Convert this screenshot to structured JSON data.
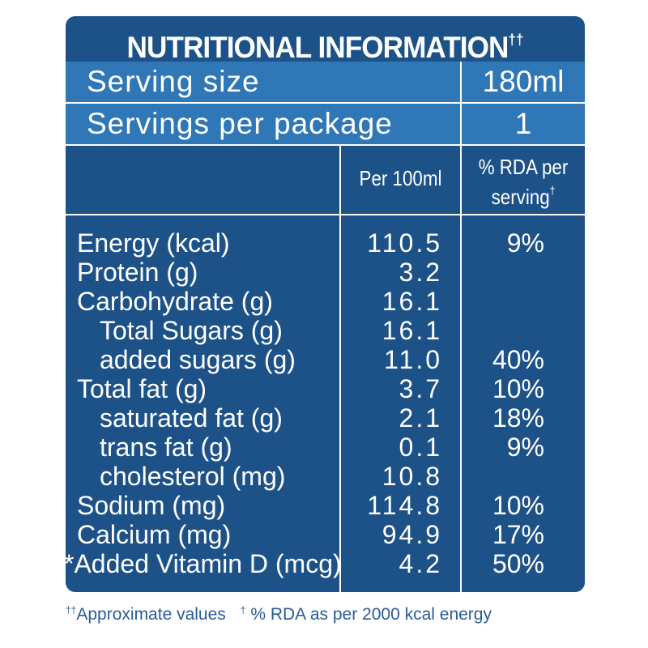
{
  "title": "NUTRITIONAL INFORMATION",
  "title_mark": "††",
  "serving_size": {
    "label": "Serving size",
    "value": "180ml"
  },
  "servings_per_package": {
    "label": "Servings per package",
    "value": "1"
  },
  "columns": {
    "per_100ml": "Per 100ml",
    "rda_line1": "% RDA per",
    "rda_line2": "serving",
    "rda_mark": "†"
  },
  "nutrients": [
    {
      "name": "Energy (kcal)",
      "per_100ml": "110.5",
      "rda": "9%",
      "indent": false
    },
    {
      "name": "Protein (g)",
      "per_100ml": "3.2",
      "rda": "",
      "indent": false
    },
    {
      "name": "Carbohydrate (g)",
      "per_100ml": "16.1",
      "rda": "",
      "indent": false
    },
    {
      "name": "Total Sugars (g)",
      "per_100ml": "16.1",
      "rda": "",
      "indent": true
    },
    {
      "name": "added sugars (g)",
      "per_100ml": "11.0",
      "rda": "40%",
      "indent": true
    },
    {
      "name": "Total fat (g)",
      "per_100ml": "3.7",
      "rda": "10%",
      "indent": false
    },
    {
      "name": "saturated fat (g)",
      "per_100ml": "2.1",
      "rda": "18%",
      "indent": true
    },
    {
      "name": "trans fat (g)",
      "per_100ml": "0.1",
      "rda": "9%",
      "indent": true
    },
    {
      "name": "cholesterol (mg)",
      "per_100ml": "10.8",
      "rda": "",
      "indent": true
    },
    {
      "name": "Sodium (mg)",
      "per_100ml": "114.8",
      "rda": "10%",
      "indent": false
    },
    {
      "name": "Calcium (mg)",
      "per_100ml": "94.9",
      "rda": "17%",
      "indent": false
    },
    {
      "name": "*Added Vitamin D (mcg)",
      "per_100ml": "4.2",
      "rda": "50%",
      "indent": false
    }
  ],
  "footnotes": {
    "mark1": "††",
    "text1": "Approximate values",
    "mark2": "†",
    "text2": " % RDA as per 2000 kcal energy"
  },
  "colors": {
    "panel": "#1d5289",
    "header_rows": "#2f77b6",
    "text": "#ffffff",
    "footnote": "#2a5d98"
  }
}
